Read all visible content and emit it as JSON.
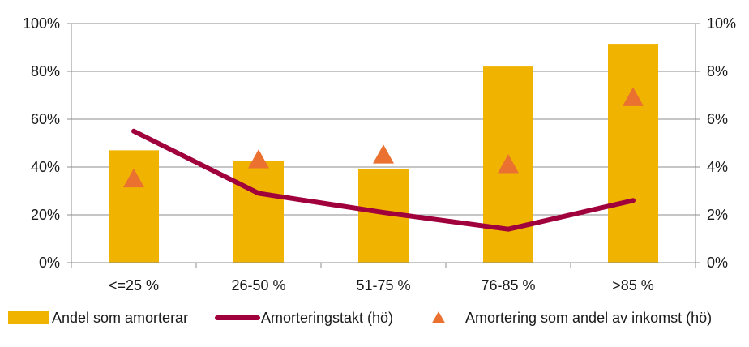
{
  "chart_data": {
    "type": "bar",
    "categories": [
      "<=25 %",
      "26-50 %",
      "51-75 %",
      "76-85 %",
      ">85 %"
    ],
    "series": [
      {
        "name": "Andel som amorterar",
        "type": "bar",
        "axis": "left",
        "values": [
          47,
          42.5,
          39,
          82,
          91.5
        ],
        "color": "#F0B400"
      },
      {
        "name": "Amorteringstakt (hö)",
        "type": "line",
        "axis": "right",
        "values": [
          5.5,
          2.9,
          2.1,
          1.4,
          2.6
        ],
        "color": "#A0003C"
      },
      {
        "name": "Amortering som andel av inkomst (hö)",
        "type": "scatter",
        "axis": "right",
        "marker": "triangle",
        "values": [
          3.5,
          4.3,
          4.5,
          4.1,
          6.9
        ],
        "color": "#EA7130"
      }
    ],
    "y_left": {
      "lim": [
        0,
        100
      ],
      "ticks": [
        "0%",
        "20%",
        "40%",
        "60%",
        "80%",
        "100%"
      ]
    },
    "y_right": {
      "lim": [
        0,
        10
      ],
      "ticks": [
        "0%",
        "2%",
        "4%",
        "6%",
        "8%",
        "10%"
      ]
    },
    "grid": true,
    "legend": "bottom"
  }
}
